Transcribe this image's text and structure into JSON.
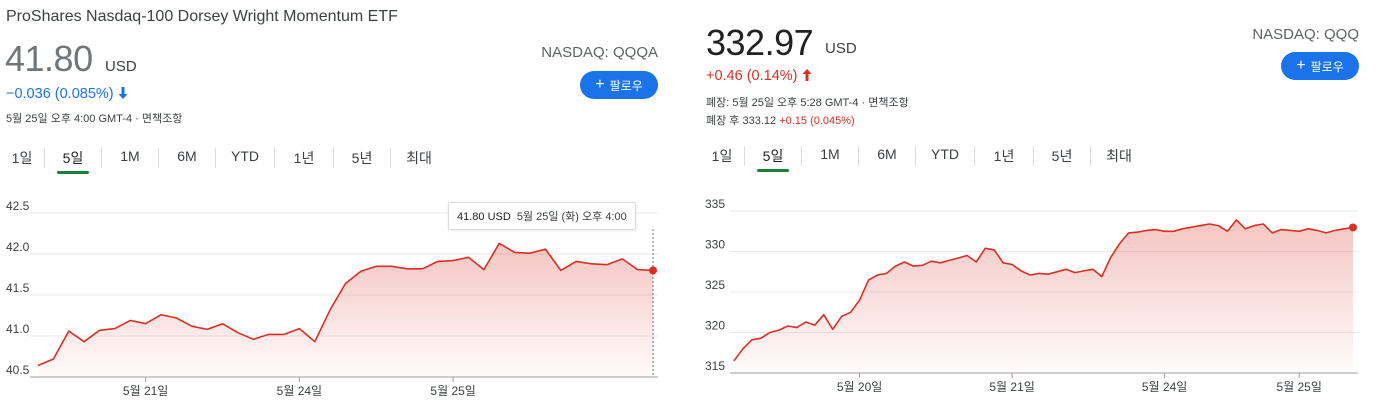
{
  "left": {
    "fund_name": "ProShares Nasdaq-100 Dorsey Wright Momentum ETF",
    "price": "41.80",
    "currency": "USD",
    "change": "−0.036 (0.085%)",
    "change_direction": "down",
    "change_arrow_icon": "arrow-down-icon",
    "meta_line": "5월 25일 오후 4:00 GMT-4 · 면책조항",
    "exchange": "NASDAQ: QQQA",
    "follow_label": "팔로우",
    "tabs": [
      "1일",
      "5일",
      "1M",
      "6M",
      "YTD",
      "1년",
      "5년",
      "최대"
    ],
    "active_tab": "5일",
    "tooltip": {
      "price": "41.80 USD",
      "time": "5월 25일 (화) 오후 4:00"
    }
  },
  "right": {
    "price": "332.97",
    "currency": "USD",
    "change": "+0.46 (0.14%)",
    "change_direction": "up",
    "change_arrow_icon": "arrow-up-icon",
    "meta_line": "폐장: 5월 25일 오후 5:28 GMT-4 · 면책조항",
    "after_hours_label": "폐장 후 333.12",
    "after_hours_change": "+0.15 (0.045%)",
    "exchange": "NASDAQ: QQQ",
    "follow_label": "팔로우",
    "tabs": [
      "1일",
      "5일",
      "1M",
      "6M",
      "YTD",
      "1년",
      "5년",
      "최대"
    ],
    "active_tab": "5일"
  },
  "colors": {
    "accent_blue": "#1a73e8",
    "line_red": "#d93025",
    "active_tab_green": "#188038",
    "grid": "#e8eaed"
  },
  "chart_data": [
    {
      "type": "area",
      "title": "",
      "xlabel": "",
      "ylabel": "",
      "ylim": [
        40.5,
        42.5
      ],
      "y_ticks": [
        "42.5",
        "42.0",
        "41.5",
        "41.0",
        "40.5"
      ],
      "x_ticks": [
        "5월 21일",
        "5월 24일",
        "5월 25일"
      ],
      "x_tick_index": [
        7,
        17,
        27
      ],
      "grid": true,
      "series": [
        {
          "values": [
            40.64,
            40.72,
            41.06,
            40.93,
            41.07,
            41.09,
            41.19,
            41.15,
            41.26,
            41.22,
            41.12,
            41.08,
            41.15,
            41.04,
            40.96,
            41.02,
            41.02,
            41.09,
            40.93,
            41.32,
            41.64,
            41.79,
            41.85,
            41.85,
            41.82,
            41.82,
            41.91,
            41.92,
            41.96,
            41.81,
            42.13,
            42.02,
            42.01,
            42.06,
            41.8,
            41.91,
            41.88,
            41.87,
            41.94,
            41.81,
            41.8
          ]
        }
      ]
    },
    {
      "type": "area",
      "title": "",
      "xlabel": "",
      "ylabel": "",
      "ylim": [
        315,
        335
      ],
      "y_ticks": [
        "335",
        "330",
        "325",
        "320",
        "315"
      ],
      "x_ticks": [
        "5월 20일",
        "5월 21일",
        "5월 24일",
        "5월 25일"
      ],
      "x_tick_index": [
        14,
        31,
        48,
        63
      ],
      "grid": true,
      "series": [
        {
          "values": [
            316.5,
            318.0,
            319.1,
            319.3,
            320.0,
            320.3,
            320.8,
            320.6,
            321.3,
            320.9,
            322.2,
            320.4,
            322.0,
            322.5,
            324.0,
            326.5,
            327.1,
            327.3,
            328.2,
            328.7,
            328.2,
            328.3,
            328.8,
            328.6,
            328.9,
            329.2,
            329.5,
            328.7,
            330.4,
            330.2,
            328.6,
            328.4,
            327.6,
            327.1,
            327.3,
            327.2,
            327.5,
            327.8,
            327.4,
            327.6,
            327.8,
            326.9,
            329.3,
            331.0,
            332.3,
            332.4,
            332.6,
            332.7,
            332.5,
            332.5,
            332.8,
            333.0,
            333.2,
            333.4,
            333.2,
            332.5,
            333.9,
            332.8,
            333.2,
            333.4,
            332.3,
            332.7,
            332.6,
            332.5,
            332.8,
            332.6,
            332.3,
            332.6,
            332.8,
            332.97
          ]
        }
      ]
    }
  ]
}
